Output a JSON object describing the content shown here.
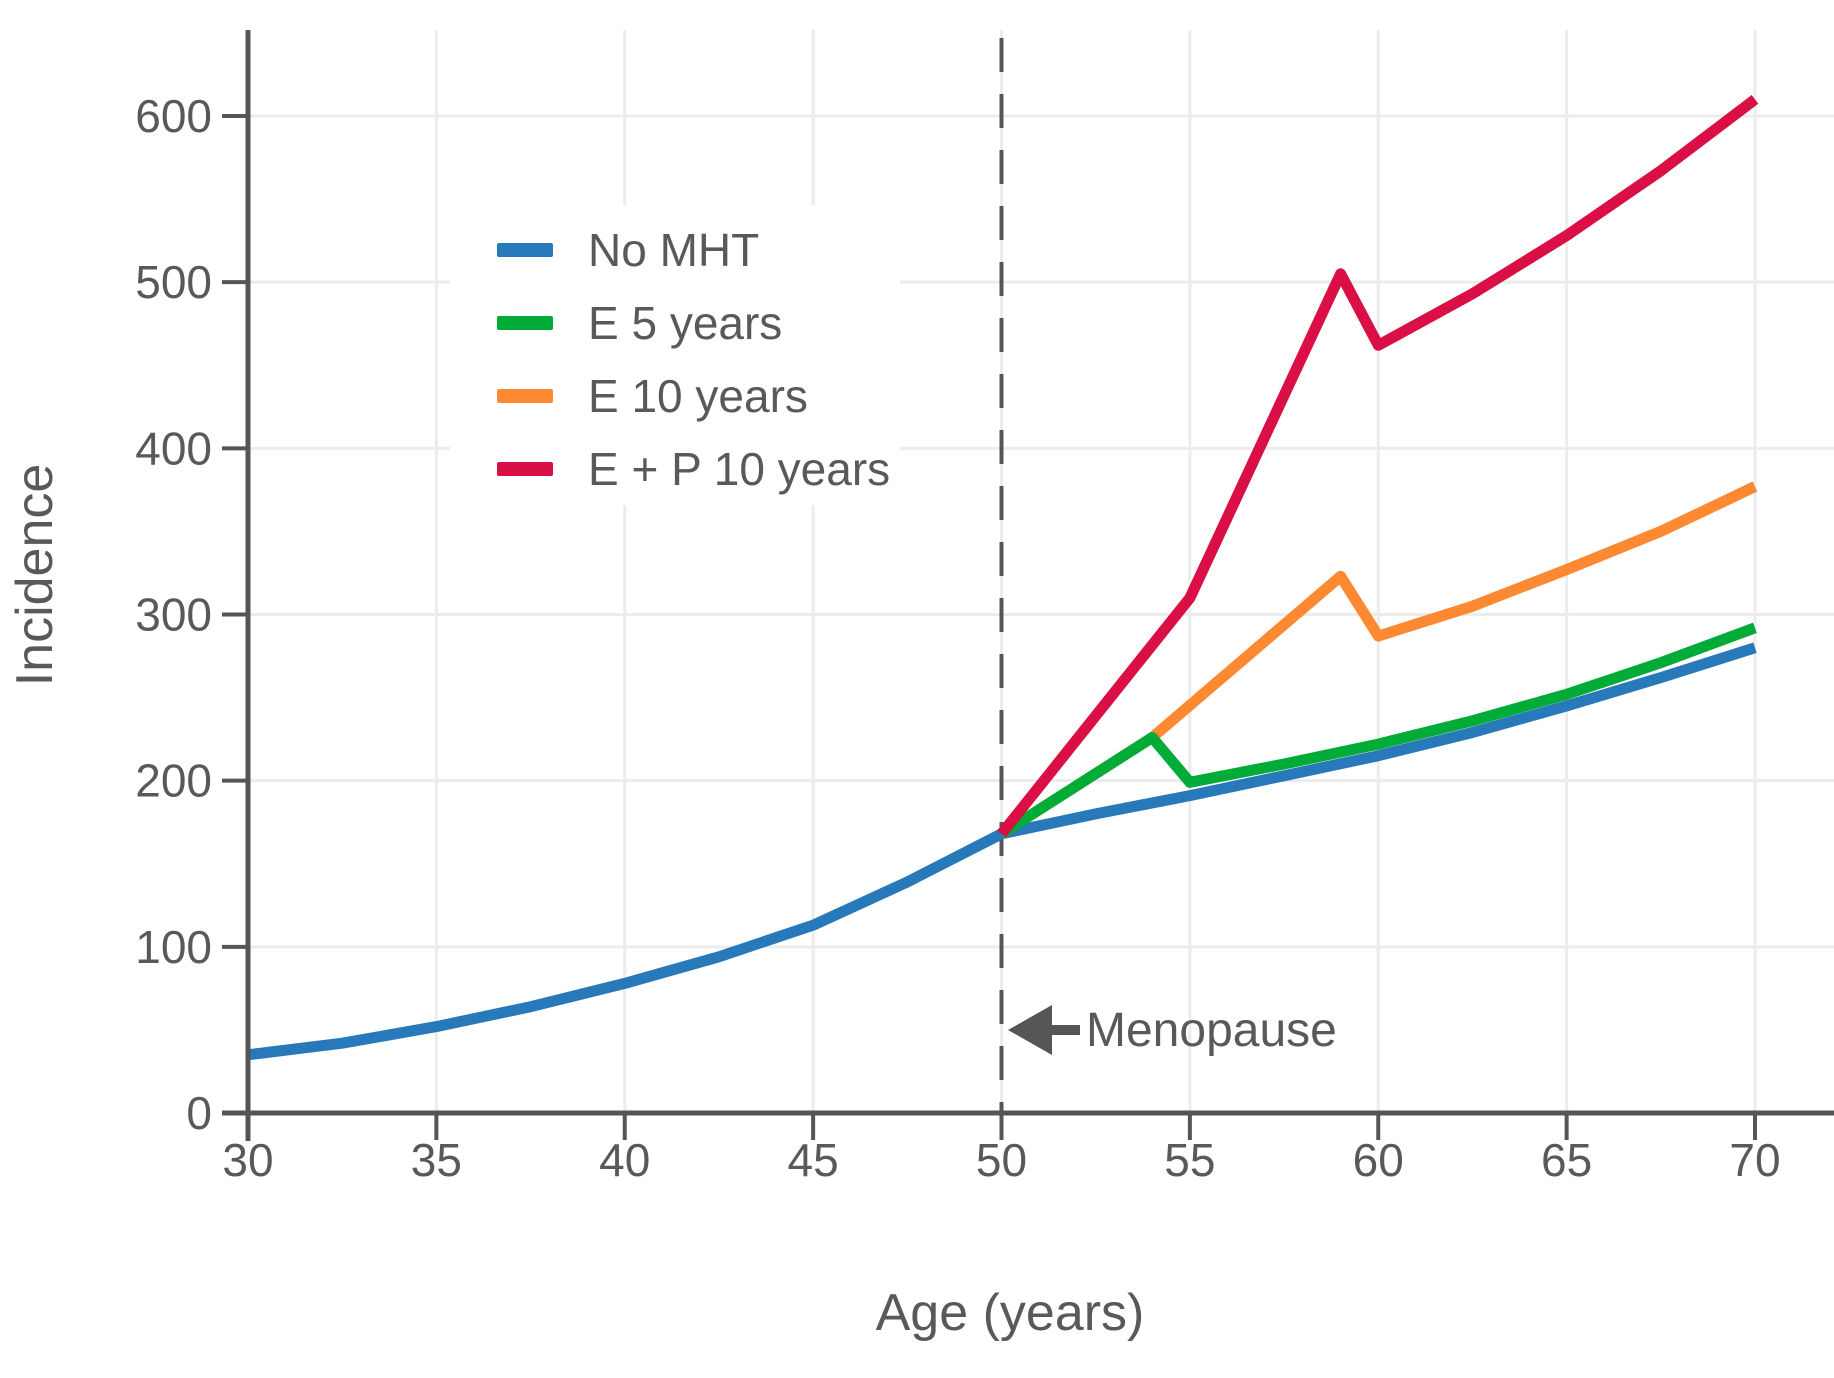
{
  "figure": {
    "ylabel": "Incidence",
    "xlabel": "Age (years)",
    "annotation": {
      "text": "Menopause",
      "icon": "left-arrow-icon",
      "at_age": 50
    }
  },
  "palette": {
    "no_mht": "#2879b9",
    "e_5": "#00ab37",
    "e_10": "#fd8932",
    "e_p_10": "#d90f45",
    "axis": "#555555",
    "tick_text": "#595959",
    "grid": "#ececec"
  },
  "chart_data": {
    "type": "line",
    "title": "",
    "xlabel": "Age (years)",
    "ylabel": "Incidence",
    "x_ticks": [
      30,
      35,
      40,
      45,
      50,
      55,
      60,
      65,
      70
    ],
    "y_ticks": [
      0,
      100,
      200,
      300,
      400,
      500,
      600
    ],
    "xlim": [
      30,
      72
    ],
    "ylim": [
      0,
      651
    ],
    "grid": true,
    "legend_position": "upper-left-inside",
    "menopause_line_x": 50,
    "series": [
      {
        "name": "No MHT",
        "color": "#2879b9",
        "points": [
          [
            30,
            35
          ],
          [
            32.5,
            42
          ],
          [
            35,
            52
          ],
          [
            37.5,
            64
          ],
          [
            40,
            78
          ],
          [
            42.5,
            94
          ],
          [
            45,
            113
          ],
          [
            47.5,
            139
          ],
          [
            50,
            168
          ],
          [
            52.5,
            180
          ],
          [
            55,
            191
          ],
          [
            57.5,
            203
          ],
          [
            60,
            215
          ],
          [
            62.5,
            229
          ],
          [
            65,
            245
          ],
          [
            67.5,
            262
          ],
          [
            70,
            280
          ]
        ]
      },
      {
        "name": "E 5 years",
        "color": "#00ab37",
        "points": [
          [
            50,
            168
          ],
          [
            54,
            226
          ],
          [
            55,
            199
          ],
          [
            57.5,
            210
          ],
          [
            60,
            222
          ],
          [
            62.5,
            236
          ],
          [
            65,
            252
          ],
          [
            67.5,
            271
          ],
          [
            70,
            292
          ]
        ]
      },
      {
        "name": "E 10 years",
        "color": "#fd8932",
        "points": [
          [
            50,
            168
          ],
          [
            54,
            226
          ],
          [
            59,
            323
          ],
          [
            60,
            287
          ],
          [
            62.5,
            305
          ],
          [
            65,
            327
          ],
          [
            67.5,
            350
          ],
          [
            70,
            377
          ]
        ]
      },
      {
        "name": "E + P 10 years",
        "color": "#d90f45",
        "points": [
          [
            50,
            168
          ],
          [
            55,
            310
          ],
          [
            59,
            505
          ],
          [
            60,
            462
          ],
          [
            62.5,
            493
          ],
          [
            65,
            528
          ],
          [
            67.5,
            567
          ],
          [
            70,
            610
          ]
        ]
      }
    ]
  }
}
